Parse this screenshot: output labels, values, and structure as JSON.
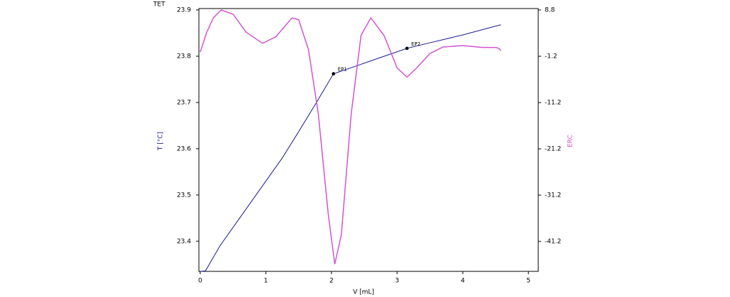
{
  "chart_data": {
    "type": "line",
    "title": "TET",
    "xlabel": "V [mL]",
    "ylabel": "T [°C]",
    "y2label": "ERC",
    "xlim": [
      -0.02,
      5.15
    ],
    "xticks": [
      0,
      1,
      2,
      3,
      4,
      5
    ],
    "ylim": [
      23.335,
      23.903
    ],
    "yticks": [
      23.4,
      23.5,
      23.6,
      23.7,
      23.8,
      23.9
    ],
    "y2lim": [
      -47.66,
      9.11
    ],
    "y2ticks": [
      -41.2,
      -31.2,
      -21.2,
      -11.2,
      -1.2,
      8.8
    ],
    "series": [
      {
        "name": "T [°C]",
        "color": "#1c1c8e",
        "x": [
          0,
          0.08,
          0.3,
          0.5,
          0.75,
          1,
          1.25,
          1.5,
          1.75,
          2.03,
          2.5,
          3.15,
          3.5,
          4,
          4.58
        ],
        "values": [
          23.335,
          23.336,
          23.39,
          23.43,
          23.48,
          23.53,
          23.58,
          23.637,
          23.695,
          23.762,
          23.785,
          23.817,
          23.829,
          23.846,
          23.868
        ]
      },
      {
        "name": "ERC",
        "color": "#d155d1",
        "axis": "y2",
        "x": [
          0,
          0.1,
          0.2,
          0.32,
          0.5,
          0.7,
          0.95,
          1.15,
          1.4,
          1.5,
          1.65,
          1.8,
          1.95,
          2.05,
          2.15,
          2.3,
          2.45,
          2.6,
          2.8,
          3.0,
          3.15,
          3.3,
          3.5,
          3.7,
          4.0,
          4.3,
          4.5,
          4.55,
          4.58
        ],
        "values": [
          -0.3,
          4.0,
          7.1,
          8.8,
          7.9,
          4.0,
          1.6,
          3.0,
          7.1,
          6.7,
          0.2,
          -13.7,
          -35.2,
          -46.1,
          -39.8,
          -13.7,
          3.3,
          7.1,
          3.3,
          -3.7,
          -5.7,
          -3.7,
          -0.6,
          0.8,
          1.1,
          0.7,
          0.7,
          0.5,
          0.0
        ]
      }
    ],
    "annotations": [
      {
        "label": "EP1",
        "x": 2.03,
        "y": 23.762
      },
      {
        "label": "EP2",
        "x": 3.15,
        "y": 23.817
      }
    ]
  }
}
